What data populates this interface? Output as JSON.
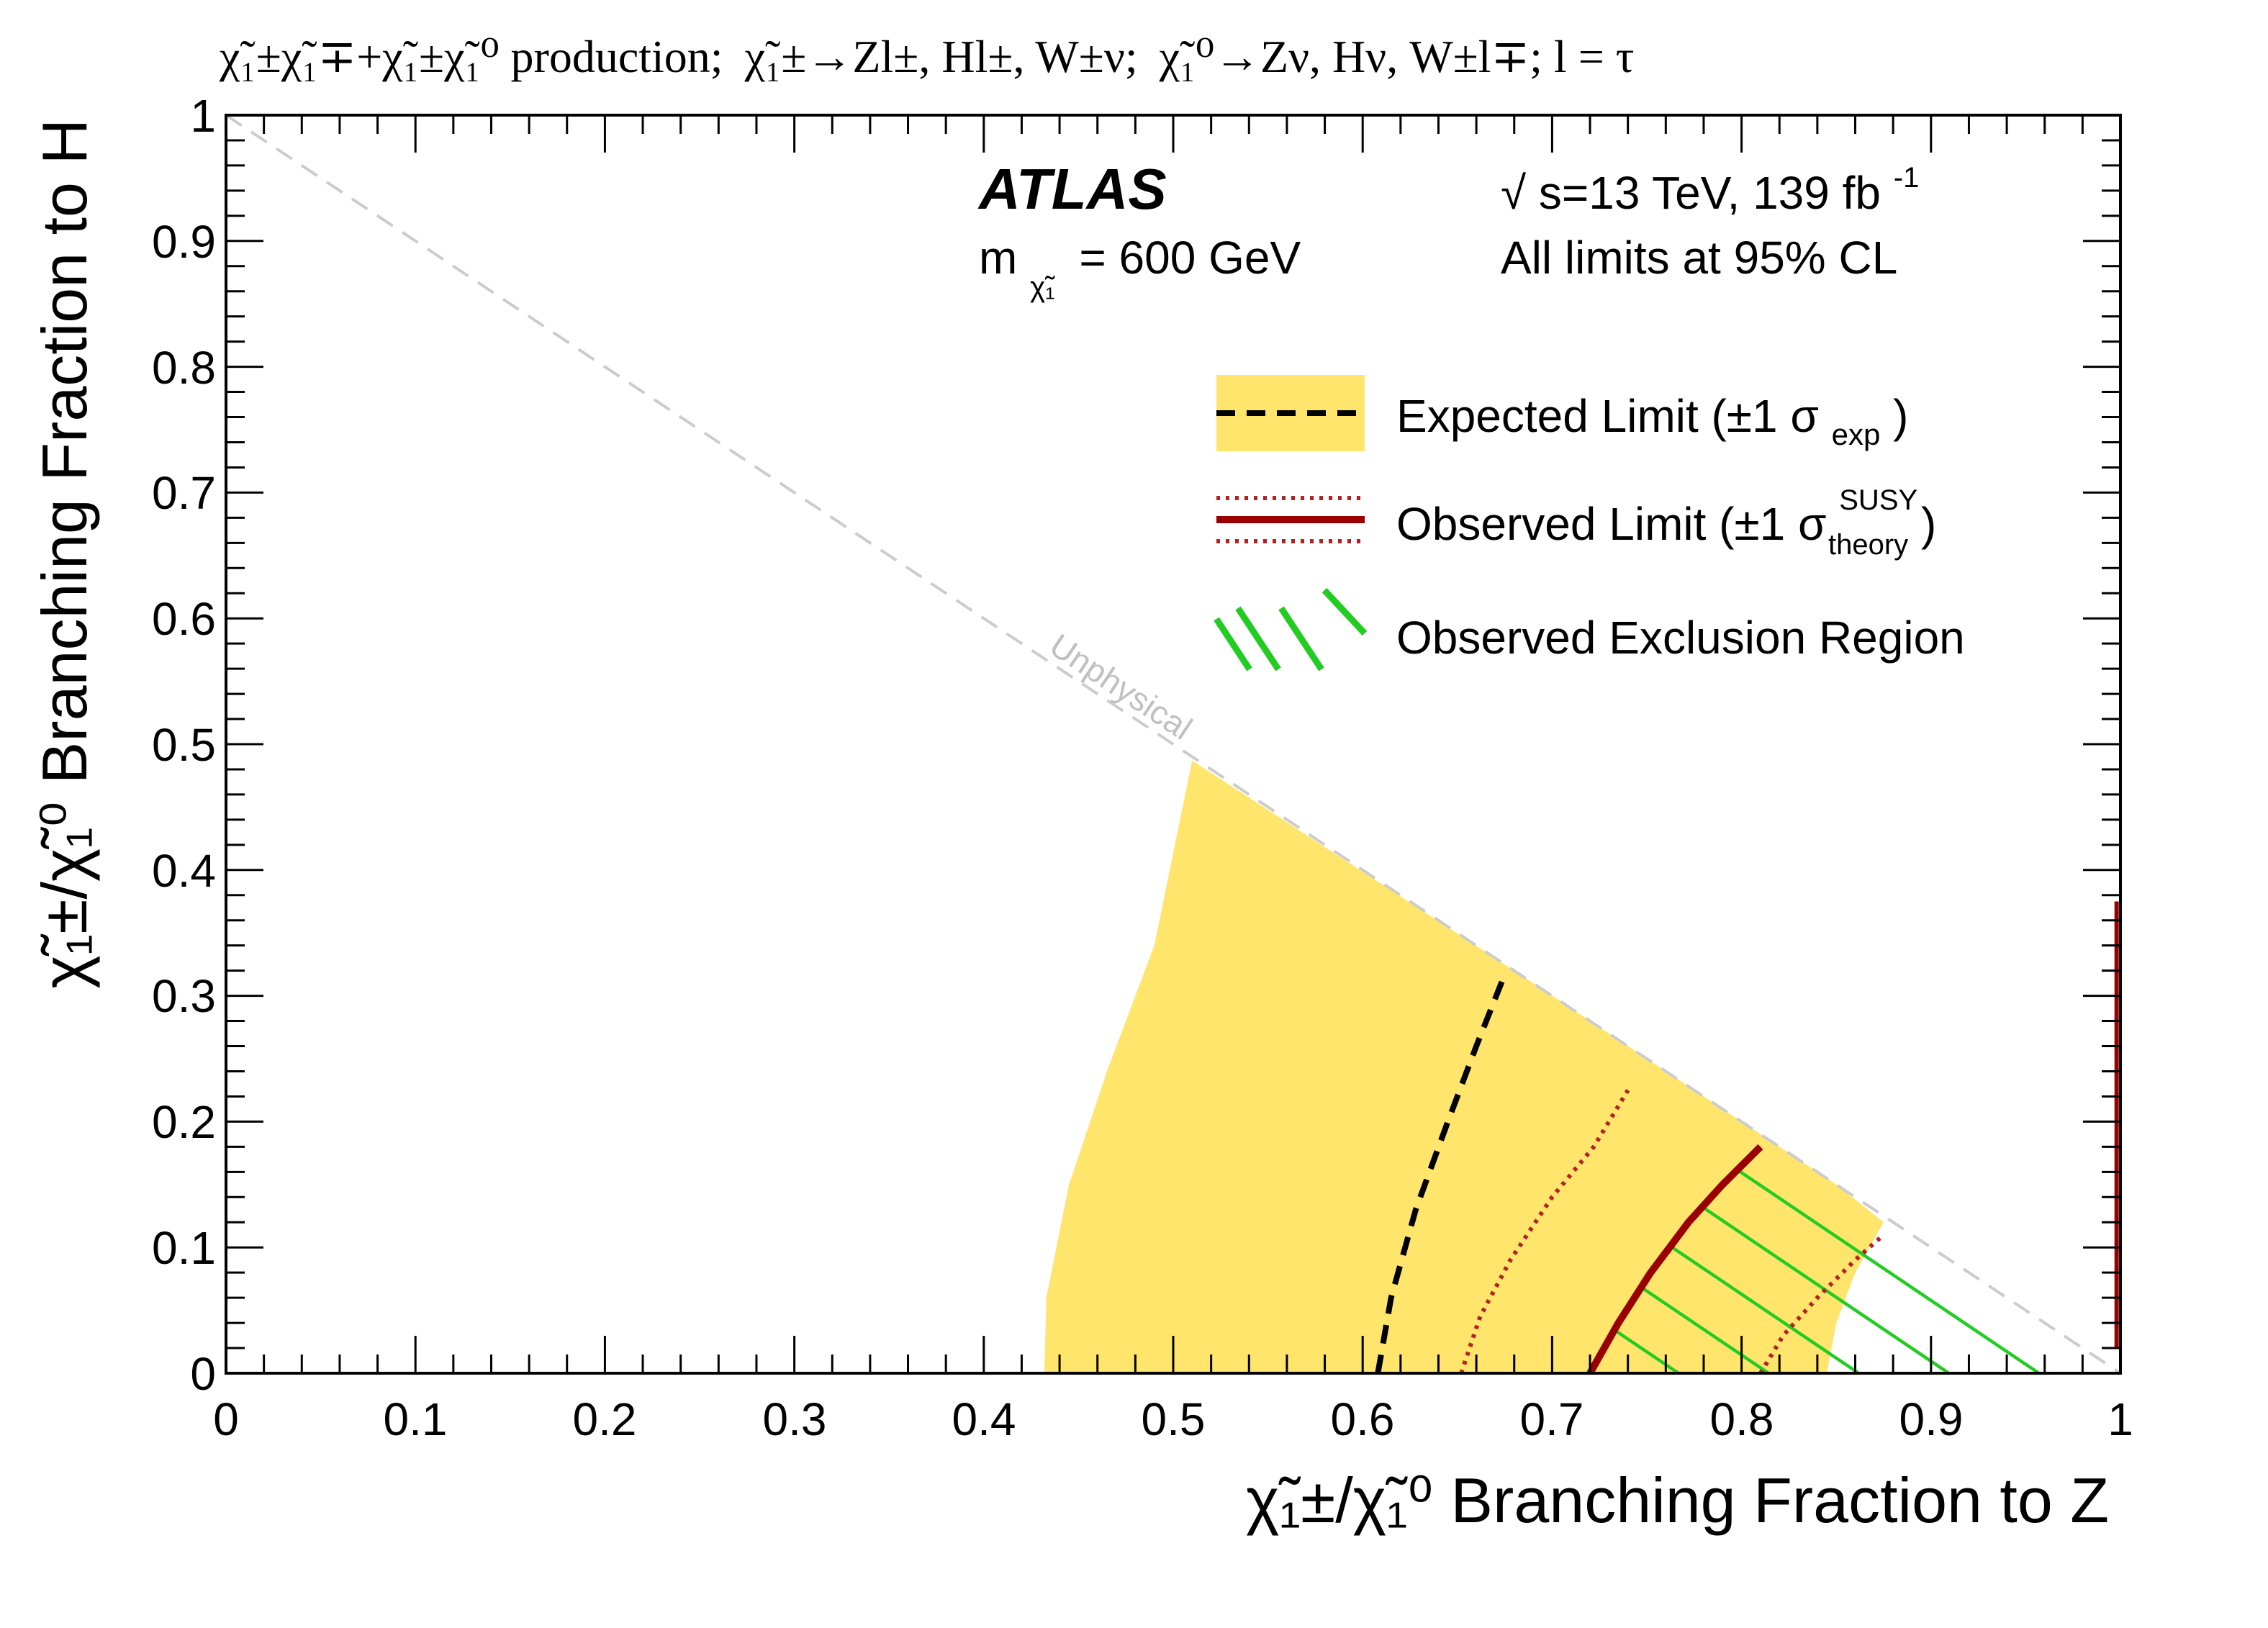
{
  "header": {
    "title_left": "χ̃₁±χ̃₁∓+χ̃₁±χ̃₁⁰ production;",
    "title_chargino": "χ̃₁±→Zl±, Hl±, W±ν;",
    "title_neutralino": "χ̃₁⁰→Zν, Hν, W±l∓; l = τ"
  },
  "labels": {
    "atlas": "ATLAS",
    "mass": "m",
    "mass_sub": "χ̃₁",
    "mass_value": "= 600 GeV",
    "energy_sqrt": "√",
    "energy": "s=13 TeV, 139 fb",
    "energy_sup": "-1",
    "cl": "All limits at 95% CL",
    "unphysical": "Unphysical"
  },
  "legend": {
    "expected": "Expected Limit (±1 σ",
    "expected_sub": "exp",
    "expected_close": ")",
    "observed": "Observed Limit (±1 σ",
    "observed_sup": "SUSY",
    "observed_sub": "theory",
    "observed_close": ")",
    "exclusion": "Observed Exclusion Region",
    "placement": "top-right"
  },
  "colors": {
    "band": "#ffe56b",
    "expected": "#000000",
    "observed": "#990000",
    "observed_band": "#b22222",
    "hatch": "#22cc22",
    "unphysical": "#cccccc"
  },
  "chart_data": {
    "type": "area",
    "xlabel": "χ̃₁±/χ̃₁⁰ Branching Fraction to Z",
    "ylabel": "χ̃₁±/χ̃₁⁰ Branching Fraction to H",
    "xlim": [
      0,
      1
    ],
    "ylim": [
      0,
      1
    ],
    "xticks": [
      "0",
      "0.1",
      "0.2",
      "0.3",
      "0.4",
      "0.5",
      "0.6",
      "0.7",
      "0.8",
      "0.9",
      "1"
    ],
    "yticks": [
      "0",
      "0.1",
      "0.2",
      "0.3",
      "0.4",
      "0.5",
      "0.6",
      "0.7",
      "0.8",
      "0.9",
      "1"
    ],
    "grid": false,
    "unphysical_boundary": [
      [
        0.0,
        1.0
      ],
      [
        1.0,
        0.0
      ]
    ],
    "expected_band": [
      [
        0.432,
        0.0
      ],
      [
        0.433,
        0.06
      ],
      [
        0.445,
        0.15
      ],
      [
        0.465,
        0.24
      ],
      [
        0.49,
        0.34
      ],
      [
        0.51,
        0.487
      ],
      [
        0.68,
        0.32
      ],
      [
        0.85,
        0.15
      ],
      [
        0.875,
        0.12
      ],
      [
        0.86,
        0.08
      ],
      [
        0.85,
        0.04
      ],
      [
        0.845,
        0.0
      ]
    ],
    "expected_limit": [
      [
        0.608,
        0.0
      ],
      [
        0.615,
        0.06
      ],
      [
        0.628,
        0.13
      ],
      [
        0.645,
        0.2
      ],
      [
        0.66,
        0.26
      ],
      [
        0.675,
        0.317
      ]
    ],
    "observed_limit": [
      [
        0.72,
        0.0
      ],
      [
        0.735,
        0.04
      ],
      [
        0.752,
        0.08
      ],
      [
        0.772,
        0.12
      ],
      [
        0.79,
        0.15
      ],
      [
        0.81,
        0.18
      ]
    ],
    "observed_minus_1sigma": [
      [
        0.652,
        0.0
      ],
      [
        0.662,
        0.045
      ],
      [
        0.678,
        0.09
      ],
      [
        0.7,
        0.14
      ],
      [
        0.722,
        0.18
      ],
      [
        0.74,
        0.225
      ]
    ],
    "observed_plus_1sigma": [
      [
        0.81,
        0.0
      ],
      [
        0.822,
        0.03
      ],
      [
        0.84,
        0.06
      ],
      [
        0.86,
        0.09
      ],
      [
        0.875,
        0.11
      ]
    ],
    "exclusion_region": [
      [
        0.72,
        0.0
      ],
      [
        0.735,
        0.04
      ],
      [
        0.752,
        0.08
      ],
      [
        0.772,
        0.12
      ],
      [
        0.79,
        0.15
      ],
      [
        0.81,
        0.18
      ],
      [
        0.813,
        0.187
      ],
      [
        1.0,
        0.0
      ]
    ],
    "observed_edge_segment": [
      [
        0.998,
        0.02
      ],
      [
        0.998,
        0.375
      ]
    ]
  }
}
